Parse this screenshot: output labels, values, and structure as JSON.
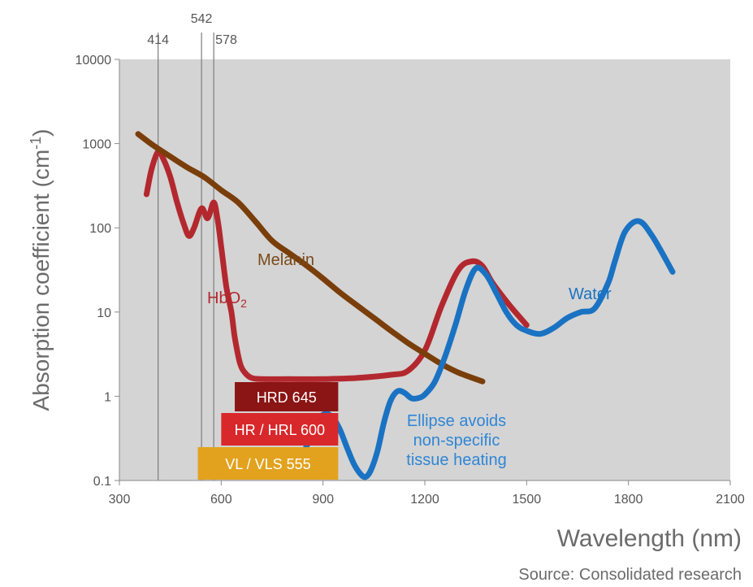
{
  "chart_data": {
    "type": "line",
    "xlabel": "Wavelength (nm)",
    "ylabel_main": "Absorption coefficient (cm",
    "ylabel_sup": "-1",
    "ylabel_close": ")",
    "source": "Source: Consolidated research",
    "x_scale": "linear",
    "y_scale": "log",
    "xlim": [
      300,
      2100
    ],
    "ylim": [
      0.1,
      10000
    ],
    "x_ticks": [
      "300",
      "600",
      "900",
      "1200",
      "1500",
      "1800",
      "2100"
    ],
    "y_ticks": [
      "0.1",
      "1",
      "10",
      "100",
      "1000",
      "10000"
    ],
    "grid": false,
    "plot_background": "#d4d4d4",
    "series": [
      {
        "name": "Melanin",
        "label_main": "Melanin",
        "color": "#7a3e0a",
        "label_color": "#7a4a1a",
        "x": [
          355,
          400,
          450,
          500,
          550,
          600,
          650,
          700,
          750,
          800,
          850,
          900,
          950,
          1000,
          1050,
          1100,
          1150,
          1200,
          1250,
          1300,
          1370
        ],
        "y": [
          1300,
          950,
          700,
          520,
          400,
          280,
          200,
          120,
          70,
          50,
          36,
          25,
          17,
          12,
          8.5,
          6,
          4.3,
          3.2,
          2.4,
          1.9,
          1.5
        ]
      },
      {
        "name": "HbO2",
        "label_main": "HbO",
        "label_sub": "2",
        "color": "#b3282e",
        "label_color": "#b3282e",
        "x": [
          380,
          395,
          414,
          430,
          450,
          470,
          490,
          505,
          520,
          542,
          560,
          578,
          590,
          600,
          615,
          630,
          640,
          655,
          670,
          690,
          720,
          800,
          900,
          1000,
          1100,
          1150,
          1200,
          1250,
          1300,
          1340,
          1370,
          1400,
          1450,
          1500
        ],
        "y": [
          250,
          500,
          800,
          650,
          400,
          200,
          110,
          80,
          100,
          170,
          130,
          200,
          120,
          60,
          20,
          10,
          5,
          2.5,
          1.9,
          1.65,
          1.6,
          1.6,
          1.6,
          1.65,
          1.8,
          2,
          3.5,
          12,
          32,
          40,
          35,
          22,
          12,
          7
        ]
      },
      {
        "name": "Water",
        "label_main": "Water",
        "color": "#1a72c2",
        "label_color": "#1a72c2",
        "x": [
          850,
          870,
          890,
          910,
          930,
          950,
          970,
          990,
          1010,
          1025,
          1040,
          1060,
          1080,
          1100,
          1120,
          1140,
          1160,
          1180,
          1200,
          1230,
          1260,
          1290,
          1320,
          1350,
          1380,
          1410,
          1440,
          1470,
          1500,
          1540,
          1580,
          1620,
          1660,
          1700,
          1740,
          1760,
          1790,
          1830,
          1870,
          1930
        ],
        "y": [
          0.25,
          0.35,
          0.55,
          0.62,
          0.55,
          0.4,
          0.25,
          0.16,
          0.12,
          0.11,
          0.13,
          0.22,
          0.5,
          0.9,
          1.15,
          1.1,
          0.95,
          0.95,
          1.05,
          1.5,
          3,
          7,
          18,
          33,
          28,
          17,
          10,
          7,
          6,
          5.5,
          6.5,
          8.5,
          10,
          11,
          22,
          40,
          90,
          120,
          80,
          30
        ]
      }
    ],
    "reference_lines": [
      {
        "value": 414,
        "label": "414"
      },
      {
        "value": 542,
        "label": "542"
      },
      {
        "value": 578,
        "label": "578"
      }
    ],
    "bands": [
      {
        "label": "HRD 645",
        "x_start": 640,
        "x_end": 940,
        "color": "#8b1414"
      },
      {
        "label": "HR / HRL 600",
        "x_start": 600,
        "x_end": 940,
        "color": "#d9282b"
      },
      {
        "label": "VL / VLS 555",
        "x_start": 555,
        "x_end": 940,
        "color": "#e2a21e"
      }
    ],
    "annotation": {
      "lines": [
        "Ellipse avoids",
        "non-specific",
        "tissue heating"
      ],
      "color": "#2f86d6"
    }
  }
}
